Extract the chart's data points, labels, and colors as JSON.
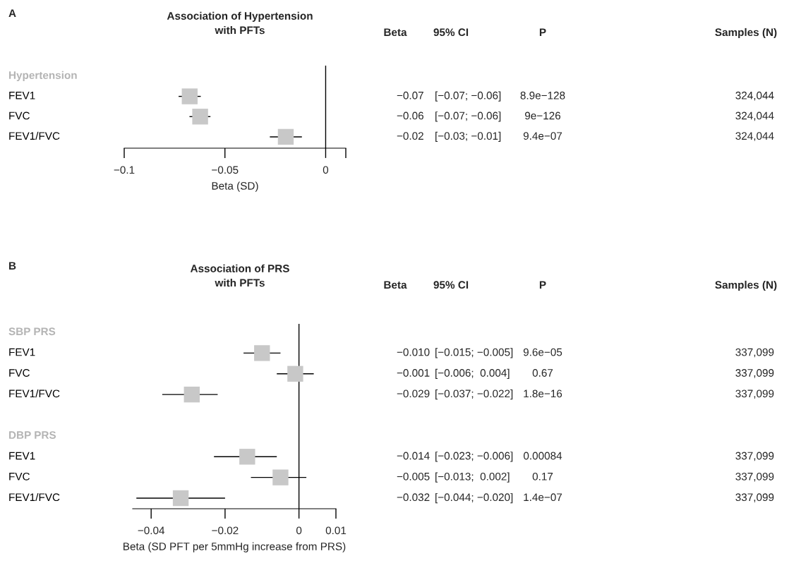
{
  "chart_data": [
    {
      "type": "scatter",
      "orientation": "horizontal",
      "title": "Association of Hypertension\nwith PFTs",
      "xlabel": "Beta (SD)",
      "categories": [
        "Hypertension",
        "FEV1",
        "FVC",
        "FEV1/FVC"
      ],
      "values": [
        null,
        -0.0675,
        -0.0623,
        -0.0198
      ],
      "errors": [
        null,
        [
          -0.073,
          -0.062
        ],
        [
          -0.0676,
          -0.0572
        ],
        [
          -0.0277,
          -0.0118
        ]
      ],
      "value_labels": [
        null,
        "−0.07",
        "−0.06",
        "−0.02"
      ],
      "color": "#c8c8c8",
      "marker": "square",
      "xlim": [
        -0.1,
        0.01
      ],
      "xticks": [
        -0.1,
        -0.05,
        0,
        {
          "value": 0.01,
          "label": null
        }
      ],
      "ref_lines": [
        {
          "axis": "x",
          "value": 0,
          "color": "#000000"
        }
      ],
      "grid": false,
      "legend": false,
      "annotations": [
        "A",
        "Beta",
        "95% CI",
        "P",
        "Samples (N)",
        "[−0.07; −0.06]",
        "8.9e−128",
        "324,044",
        "[−0.07; −0.06]",
        "9e−126",
        "324,044",
        "[−0.03; −0.01]",
        "9.4e−07",
        "324,044"
      ]
    },
    {
      "type": "scatter",
      "orientation": "horizontal",
      "title": "Association of PRS\nwith PFTs",
      "xlabel": "Beta (SD PFT per 5mmHg increase from PRS)",
      "categories": [
        "SBP PRS",
        "FEV1",
        "FVC",
        "FEV1/FVC",
        null,
        "DBP PRS",
        "FEV1",
        "FVC",
        "FEV1/FVC"
      ],
      "values": [
        null,
        -0.01,
        -0.001,
        -0.029,
        null,
        null,
        -0.014,
        -0.005,
        -0.032
      ],
      "errors": [
        null,
        [
          -0.015,
          -0.005
        ],
        [
          -0.006,
          0.004
        ],
        [
          -0.037,
          -0.022
        ],
        null,
        null,
        [
          -0.023,
          -0.006
        ],
        [
          -0.013,
          0.002
        ],
        [
          -0.044,
          -0.02
        ]
      ],
      "value_labels": [
        null,
        "−0.010",
        "−0.001",
        "−0.029",
        null,
        null,
        "−0.014",
        "−0.005",
        "−0.032"
      ],
      "color": "#c8c8c8",
      "marker": "square",
      "xlim": [
        -0.045,
        0.01
      ],
      "xticks": [
        -0.04,
        -0.02,
        0,
        0.01
      ],
      "ref_lines": [
        {
          "axis": "x",
          "value": 0,
          "color": "#000000"
        }
      ],
      "grid": false,
      "legend": false,
      "annotations": [
        "B",
        "Beta",
        "95% CI",
        "P",
        "Samples (N)",
        "[−0.015; −0.005]",
        "9.6e−05",
        "337,099",
        "[−0.006;  0.004]",
        "0.67",
        "337,099",
        "[−0.037; −0.022]",
        "1.8e−16",
        "337,099",
        "[−0.023; −0.006]",
        "0.00084",
        "337,099",
        "[−0.013;  0.002]",
        "0.17",
        "337,099",
        "[−0.044; −0.020]",
        "1.4e−07",
        "337,099"
      ]
    }
  ]
}
